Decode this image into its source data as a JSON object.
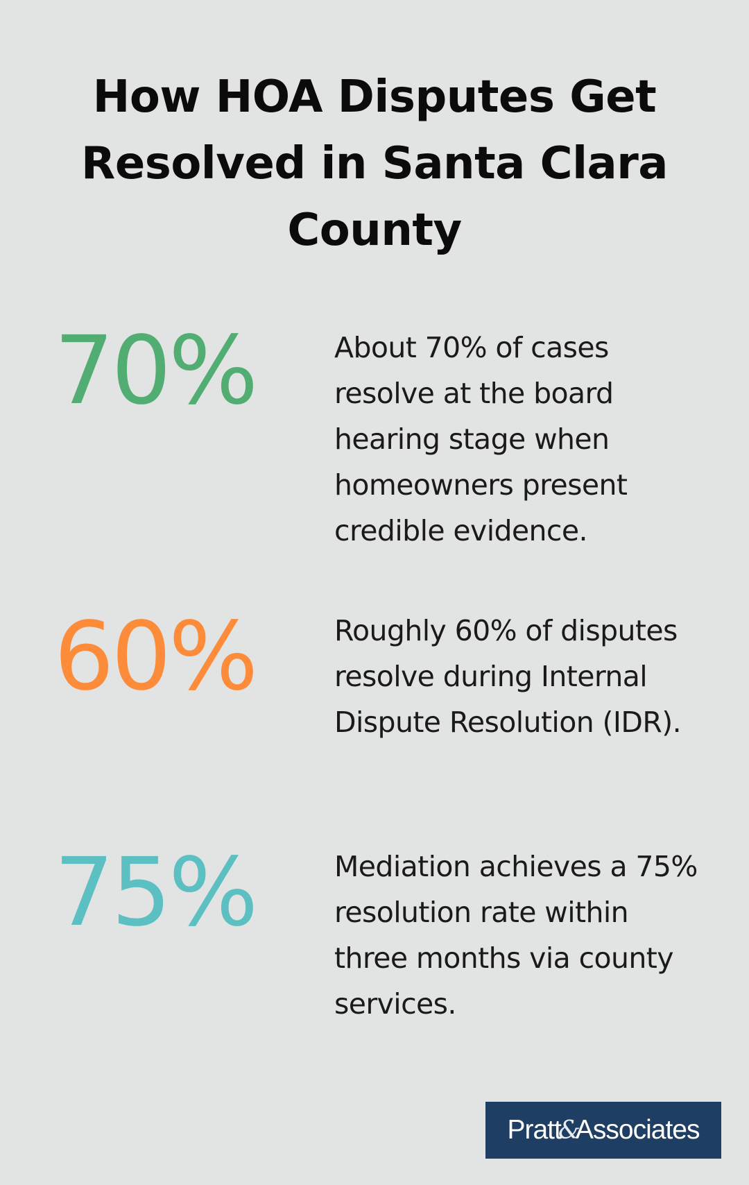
{
  "title": "How HOA Disputes Get Resolved in Santa Clara County",
  "stats": [
    {
      "value": "70%",
      "color": "#52ad72",
      "description": "About 70% of cases resolve at the board hearing stage when homeowners present credible evidence."
    },
    {
      "value": "60%",
      "color": "#fd8c3a",
      "description": "Roughly 60% of disputes resolve during Internal Dispute Resolution (IDR)."
    },
    {
      "value": "75%",
      "color": "#5cbfc2",
      "description": "Mediation achieves a 75% resolution rate within three months via county services."
    }
  ],
  "logo": {
    "left_text": "Pratt",
    "ampersand": "&",
    "right_text": "Associates",
    "background": "#1f3e63"
  }
}
